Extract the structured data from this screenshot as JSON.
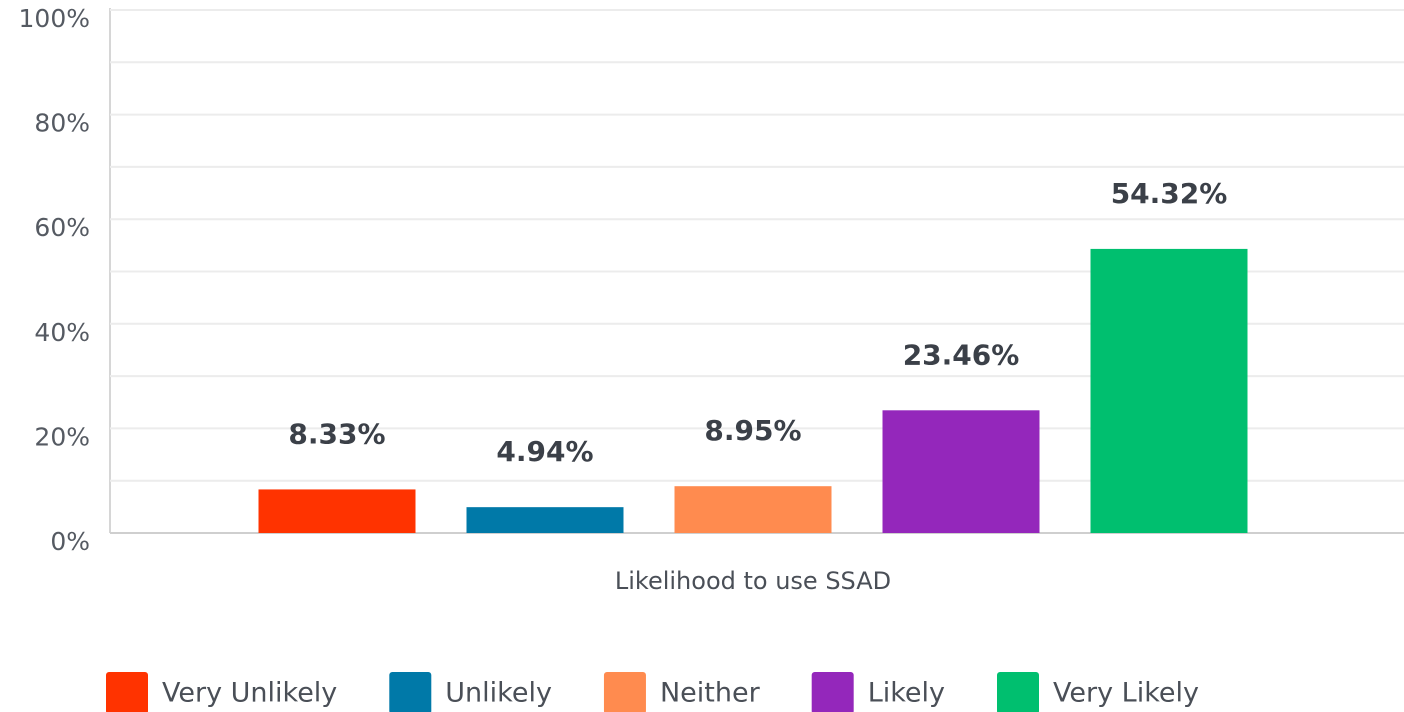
{
  "chart_data": {
    "type": "bar",
    "categories": [
      "Likelihood to use SSAD"
    ],
    "series": [
      {
        "name": "Very Unlikely",
        "color": "#ff3300",
        "values": [
          8.33
        ],
        "value_labels": [
          "8.33%"
        ]
      },
      {
        "name": "Unlikely",
        "color": "#0079a8",
        "values": [
          4.94
        ],
        "value_labels": [
          "4.94%"
        ]
      },
      {
        "name": "Neither",
        "color": "#ff8b4f",
        "values": [
          8.95
        ],
        "value_labels": [
          "8.95%"
        ]
      },
      {
        "name": "Likely",
        "color": "#9427bb",
        "values": [
          23.46
        ],
        "value_labels": [
          "23.46%"
        ]
      },
      {
        "name": "Very Likely",
        "color": "#00bf6f",
        "values": [
          54.32
        ],
        "value_labels": [
          "54.32%"
        ]
      }
    ],
    "ylim": [
      0,
      100
    ],
    "yticks": [
      {
        "value": 0,
        "label": "0%"
      },
      {
        "value": 20,
        "label": "20%"
      },
      {
        "value": 40,
        "label": "40%"
      },
      {
        "value": 60,
        "label": "60%"
      },
      {
        "value": 80,
        "label": "80%"
      },
      {
        "value": 100,
        "label": "100%"
      }
    ],
    "minor_yticks": [
      10,
      30,
      50,
      70,
      90
    ],
    "grid": true,
    "legend": "bottom"
  }
}
